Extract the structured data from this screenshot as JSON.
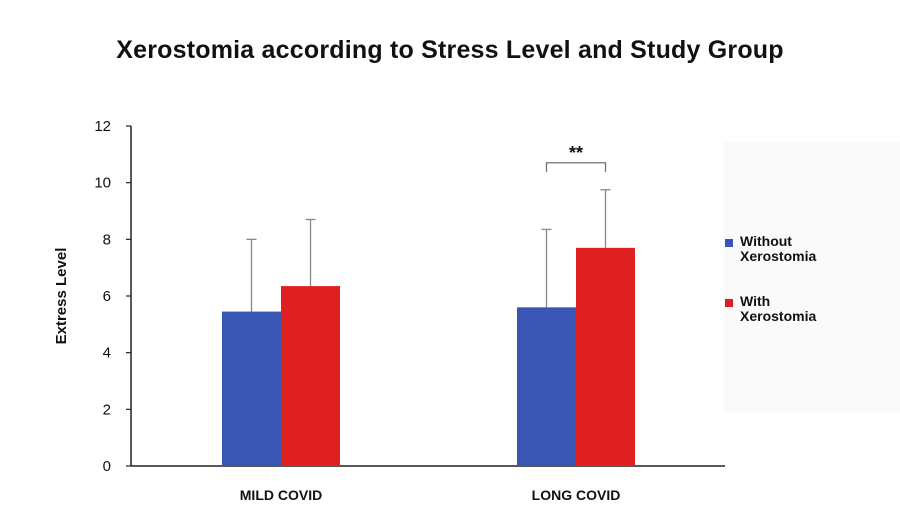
{
  "chart_data": {
    "type": "bar",
    "title": "Xerostomia according to Stress Level and Study Group",
    "xlabel": "",
    "ylabel": "Extress Level",
    "ylim": [
      0,
      12
    ],
    "yticks": [
      0,
      2,
      4,
      6,
      8,
      10,
      12
    ],
    "categories": [
      "MILD COVID",
      "LONG COVID"
    ],
    "series": [
      {
        "name": "Without Xerostomia",
        "legend_lines": [
          "Without",
          "Xerostomia"
        ],
        "color": "#3a56b4",
        "values": [
          5.45,
          5.6
        ],
        "error_upper": [
          8.0,
          8.35
        ]
      },
      {
        "name": "With Xerostomia",
        "legend_lines": [
          "With",
          "Xerostomia"
        ],
        "color": "#e02020",
        "values": [
          6.35,
          7.7
        ],
        "error_upper": [
          8.7,
          9.75
        ]
      }
    ],
    "annotations": [
      {
        "text": "**",
        "category": "LONG COVID",
        "bracket_between_series": [
          0,
          1
        ]
      }
    ],
    "legend_position": "right",
    "grid": false
  }
}
